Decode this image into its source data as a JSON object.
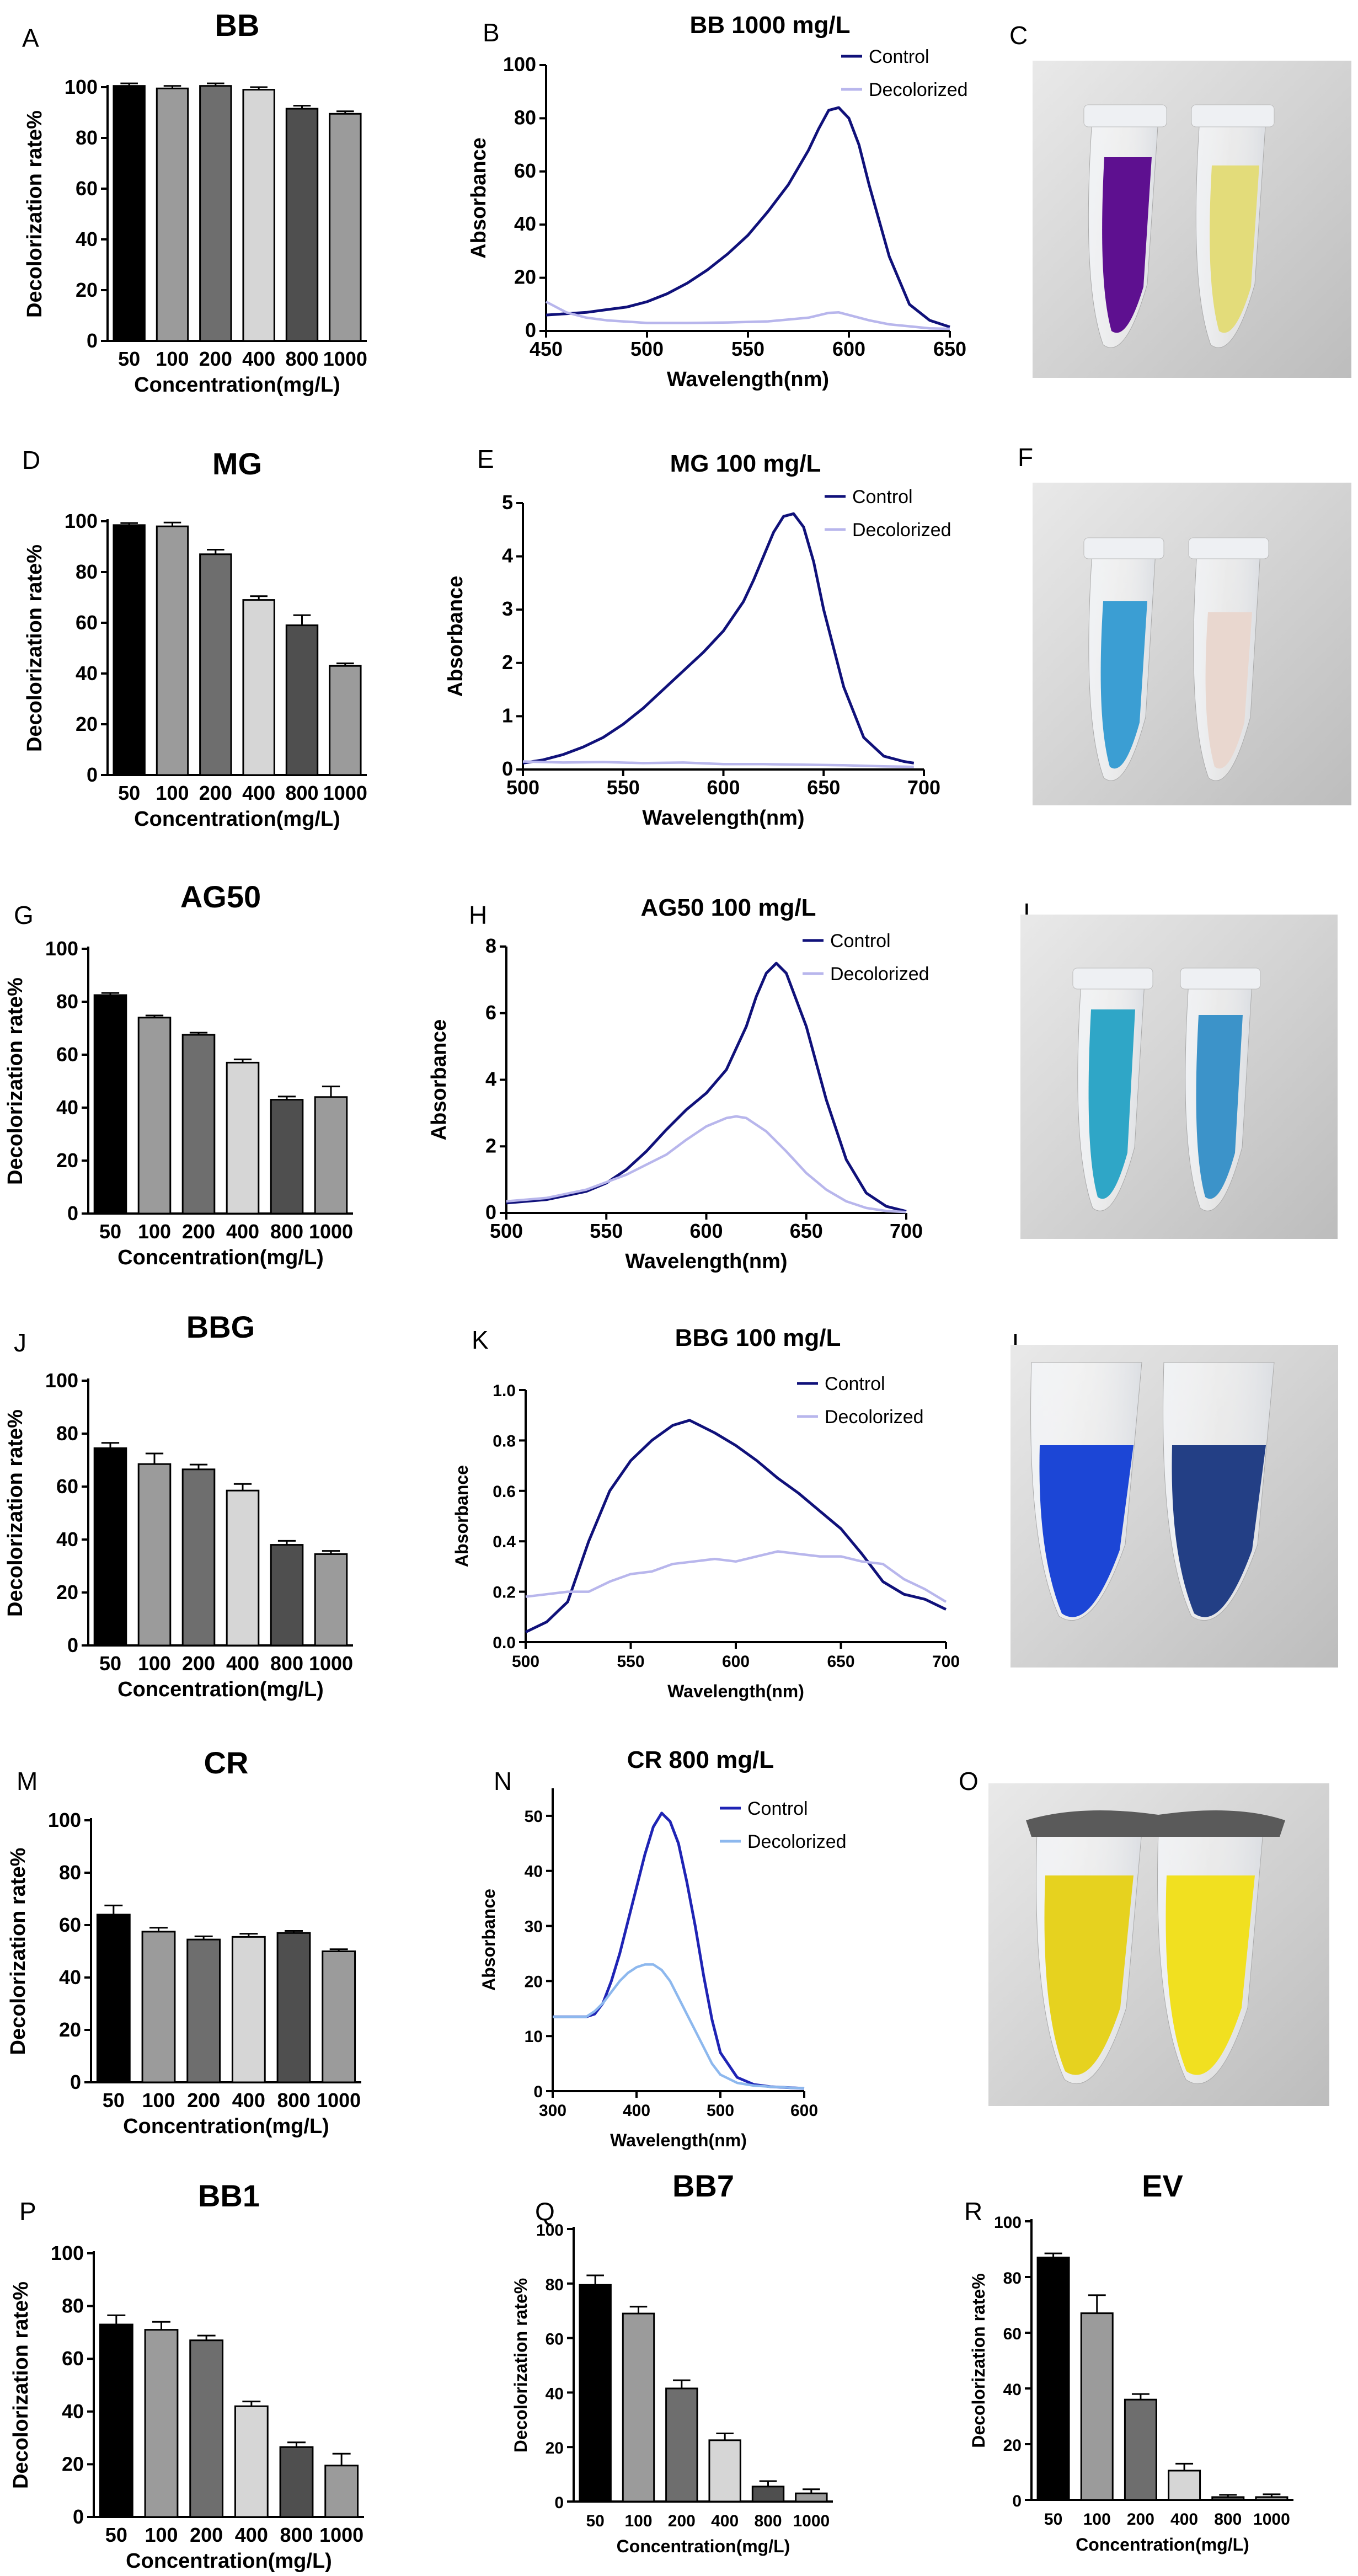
{
  "panel_letters": [
    "A",
    "B",
    "C",
    "D",
    "E",
    "F",
    "G",
    "H",
    "I",
    "J",
    "K",
    "L",
    "M",
    "N",
    "O",
    "P",
    "Q",
    "R"
  ],
  "photo_descriptions": [],
  "colors": {
    "bar_fills": [
      "#000000",
      "#9b9b9b",
      "#6e6e6e",
      "#d6d6d6",
      "#4f4f4f",
      "#9b9b9b"
    ],
    "control_line": "#10117a",
    "decolorized_line": "#b8b6ec",
    "control_line_N": "#1f24b5",
    "decolorized_line_N": "#8db8ee"
  },
  "chart_data": [
    {
      "id": "A",
      "type": "bar",
      "title": "BB",
      "categories": [
        "50",
        "100",
        "200",
        "400",
        "800",
        "1000"
      ],
      "values": [
        100.5,
        99.5,
        100.5,
        99,
        91.5,
        89.5
      ],
      "errors": [
        1,
        1,
        1,
        1,
        1.2,
        1
      ],
      "ylabel": "Decolorization rate%",
      "xlabel": "Concentration(mg/L)",
      "ylim": [
        0,
        100
      ],
      "yticks": [
        "0",
        "20",
        "40",
        "60",
        "80",
        "100"
      ]
    },
    {
      "id": "B",
      "type": "line",
      "title": "BB 1000 mg/L",
      "xlabel": "Wavelength(nm)",
      "ylabel": "Absorbance",
      "xlim": [
        450,
        650
      ],
      "ylim": [
        0,
        100
      ],
      "xticks": [
        "450",
        "500",
        "550",
        "600",
        "650"
      ],
      "yticks": [
        "0",
        "20",
        "40",
        "60",
        "80",
        "100"
      ],
      "legend": [
        "Control",
        "Decolorized"
      ],
      "series": [
        {
          "name": "Control",
          "x": [
            450,
            460,
            470,
            480,
            490,
            500,
            510,
            520,
            530,
            540,
            550,
            560,
            570,
            580,
            585,
            590,
            595,
            600,
            605,
            610,
            620,
            630,
            640,
            650
          ],
          "y": [
            6,
            6.5,
            7,
            8,
            9,
            11,
            14,
            18,
            23,
            29,
            36,
            45,
            55,
            68,
            76,
            83,
            84,
            80,
            70,
            55,
            28,
            10,
            4,
            1.5
          ]
        },
        {
          "name": "Decolorized",
          "x": [
            450,
            460,
            470,
            480,
            500,
            520,
            540,
            560,
            580,
            590,
            595,
            600,
            610,
            620,
            640,
            650
          ],
          "y": [
            11,
            7,
            5,
            4,
            3,
            3,
            3.2,
            3.6,
            5,
            6.8,
            7,
            6,
            4,
            2.5,
            1,
            0.8
          ]
        }
      ]
    },
    {
      "id": "D",
      "type": "bar",
      "title": "MG",
      "categories": [
        "50",
        "100",
        "200",
        "400",
        "800",
        "1000"
      ],
      "values": [
        98.5,
        98,
        87,
        69,
        59,
        43
      ],
      "errors": [
        0.8,
        1.5,
        1.8,
        1.5,
        4,
        1
      ],
      "ylabel": "Decolorization rate%",
      "xlabel": "Concentration(mg/L)",
      "ylim": [
        0,
        100
      ],
      "yticks": [
        "0",
        "20",
        "40",
        "60",
        "80",
        "100"
      ]
    },
    {
      "id": "E",
      "type": "line",
      "title": "MG 100 mg/L",
      "xlabel": "Wavelength(nm)",
      "ylabel": "Absorbance",
      "xlim": [
        500,
        700
      ],
      "ylim": [
        0,
        5
      ],
      "xticks": [
        "500",
        "550",
        "600",
        "650",
        "700"
      ],
      "yticks": [
        "0",
        "1",
        "2",
        "3",
        "4",
        "5"
      ],
      "legend": [
        "Control",
        "Decolorized"
      ],
      "series": [
        {
          "name": "Control",
          "x": [
            500,
            510,
            520,
            530,
            540,
            550,
            560,
            570,
            580,
            590,
            600,
            610,
            615,
            620,
            625,
            630,
            635,
            640,
            645,
            650,
            660,
            670,
            680,
            690,
            695
          ],
          "y": [
            0.12,
            0.18,
            0.28,
            0.42,
            0.6,
            0.85,
            1.15,
            1.5,
            1.85,
            2.2,
            2.6,
            3.15,
            3.55,
            4.0,
            4.45,
            4.75,
            4.8,
            4.55,
            3.9,
            3.0,
            1.55,
            0.6,
            0.25,
            0.15,
            0.12
          ]
        },
        {
          "name": "Decolorized",
          "x": [
            500,
            520,
            540,
            560,
            580,
            600,
            620,
            640,
            660,
            680,
            695
          ],
          "y": [
            0.15,
            0.13,
            0.14,
            0.12,
            0.13,
            0.1,
            0.1,
            0.09,
            0.08,
            0.06,
            0.05
          ]
        }
      ]
    },
    {
      "id": "G",
      "type": "bar",
      "title": "AG50",
      "categories": [
        "50",
        "100",
        "200",
        "400",
        "800",
        "1000"
      ],
      "values": [
        82.5,
        74,
        67.5,
        57,
        43,
        44
      ],
      "errors": [
        0.8,
        0.8,
        0.8,
        1.2,
        1.2,
        4
      ],
      "ylabel": "Decolorization rate%",
      "xlabel": "Concentration(mg/L)",
      "ylim": [
        0,
        100
      ],
      "yticks": [
        "0",
        "20",
        "40",
        "60",
        "80",
        "100"
      ]
    },
    {
      "id": "H",
      "type": "line",
      "title": "AG50 100 mg/L",
      "xlabel": "Wavelength(nm)",
      "ylabel": "Absorbance",
      "xlim": [
        500,
        700
      ],
      "ylim": [
        0,
        8
      ],
      "xticks": [
        "500",
        "550",
        "600",
        "650",
        "700"
      ],
      "yticks": [
        "0",
        "2",
        "4",
        "6",
        "8"
      ],
      "legend": [
        "Control",
        "Decolorized"
      ],
      "series": [
        {
          "name": "Control",
          "x": [
            500,
            520,
            540,
            550,
            560,
            570,
            580,
            590,
            600,
            610,
            620,
            625,
            630,
            635,
            640,
            650,
            660,
            670,
            680,
            690,
            700
          ],
          "y": [
            0.3,
            0.4,
            0.65,
            0.9,
            1.3,
            1.85,
            2.5,
            3.1,
            3.6,
            4.3,
            5.6,
            6.5,
            7.2,
            7.5,
            7.2,
            5.6,
            3.4,
            1.6,
            0.6,
            0.2,
            0.05
          ]
        },
        {
          "name": "Decolorized",
          "x": [
            500,
            520,
            540,
            560,
            580,
            590,
            600,
            610,
            615,
            620,
            630,
            640,
            650,
            660,
            670,
            680,
            690,
            700
          ],
          "y": [
            0.35,
            0.45,
            0.7,
            1.15,
            1.75,
            2.2,
            2.6,
            2.85,
            2.9,
            2.85,
            2.45,
            1.85,
            1.2,
            0.7,
            0.35,
            0.15,
            0.06,
            0.03
          ]
        }
      ]
    },
    {
      "id": "J",
      "type": "bar",
      "title": "BBG",
      "categories": [
        "50",
        "100",
        "200",
        "400",
        "800",
        "1000"
      ],
      "values": [
        74.5,
        68.5,
        66.5,
        58.5,
        38,
        34.5
      ],
      "errors": [
        2,
        4,
        1.8,
        2.5,
        1.5,
        1.2
      ],
      "ylabel": "Decolorization rate%",
      "xlabel": "Concentration(mg/L)",
      "ylim": [
        0,
        100
      ],
      "yticks": [
        "0",
        "20",
        "40",
        "60",
        "80",
        "100"
      ]
    },
    {
      "id": "K",
      "type": "line",
      "title": "BBG 100 mg/L",
      "xlabel": "Wavelength(nm)",
      "ylabel": "Absorbance",
      "xlim": [
        500,
        700
      ],
      "ylim": [
        0,
        1.0
      ],
      "xticks": [
        "500",
        "550",
        "600",
        "650",
        "700"
      ],
      "yticks": [
        "0.0",
        "0.2",
        "0.4",
        "0.6",
        "0.8",
        "1.0"
      ],
      "legend": [
        "Control",
        "Decolorized"
      ],
      "series": [
        {
          "name": "Control",
          "x": [
            500,
            510,
            520,
            530,
            540,
            550,
            560,
            570,
            578,
            590,
            600,
            610,
            620,
            630,
            640,
            650,
            660,
            670,
            680,
            690,
            700
          ],
          "y": [
            0.04,
            0.08,
            0.16,
            0.4,
            0.6,
            0.72,
            0.8,
            0.86,
            0.88,
            0.83,
            0.78,
            0.72,
            0.65,
            0.59,
            0.52,
            0.45,
            0.35,
            0.24,
            0.19,
            0.17,
            0.13
          ]
        },
        {
          "name": "Decolorized",
          "x": [
            500,
            510,
            520,
            530,
            540,
            550,
            560,
            570,
            580,
            590,
            600,
            610,
            620,
            630,
            640,
            650,
            660,
            670,
            680,
            690,
            700
          ],
          "y": [
            0.18,
            0.19,
            0.2,
            0.2,
            0.24,
            0.27,
            0.28,
            0.31,
            0.32,
            0.33,
            0.32,
            0.34,
            0.36,
            0.35,
            0.34,
            0.34,
            0.32,
            0.31,
            0.25,
            0.21,
            0.16
          ]
        }
      ]
    },
    {
      "id": "M",
      "type": "bar",
      "title": "CR",
      "categories": [
        "50",
        "100",
        "200",
        "400",
        "800",
        "1000"
      ],
      "values": [
        64,
        57.5,
        54.5,
        55.5,
        57,
        50
      ],
      "errors": [
        3.5,
        1.5,
        1.2,
        1.2,
        0.8,
        0.8
      ],
      "ylabel": "Decolorization rate%",
      "xlabel": "Concentration(mg/L)",
      "ylim": [
        0,
        100
      ],
      "yticks": [
        "0",
        "20",
        "40",
        "60",
        "80",
        "100"
      ]
    },
    {
      "id": "N",
      "type": "line",
      "title": "CR 800 mg/L",
      "xlabel": "Wavelength(nm)",
      "ylabel": "Absorbance",
      "xlim": [
        300,
        600
      ],
      "ylim": [
        0,
        55
      ],
      "xticks": [
        "300",
        "400",
        "500",
        "600"
      ],
      "yticks": [
        "0",
        "10",
        "20",
        "30",
        "40",
        "50"
      ],
      "legend": [
        "Control",
        "Decolorized"
      ],
      "series": [
        {
          "name": "Control",
          "x": [
            300,
            320,
            340,
            350,
            360,
            370,
            380,
            390,
            400,
            410,
            420,
            430,
            440,
            450,
            460,
            470,
            480,
            490,
            500,
            520,
            540,
            560,
            600
          ],
          "y": [
            13.5,
            13.5,
            13.5,
            14,
            16,
            20,
            25,
            31,
            37,
            43,
            48,
            50.5,
            49,
            45,
            38,
            30,
            21,
            13,
            7,
            2.5,
            1.2,
            0.8,
            0.5
          ]
        },
        {
          "name": "Decolorized",
          "x": [
            300,
            320,
            340,
            350,
            360,
            370,
            380,
            390,
            400,
            410,
            420,
            430,
            440,
            450,
            460,
            470,
            480,
            490,
            500,
            520,
            540,
            560,
            600
          ],
          "y": [
            13.5,
            13.5,
            13.5,
            14.5,
            16,
            18,
            20,
            21.5,
            22.5,
            23,
            23,
            22,
            20,
            17,
            14,
            11,
            8,
            5,
            3,
            1.5,
            1,
            0.8,
            0.5
          ]
        }
      ]
    },
    {
      "id": "P",
      "type": "bar",
      "title": "BB1",
      "categories": [
        "50",
        "100",
        "200",
        "400",
        "800",
        "1000"
      ],
      "values": [
        73,
        71,
        67,
        42,
        26.5,
        19.5
      ],
      "errors": [
        3.5,
        3,
        1.8,
        1.8,
        1.8,
        4.5
      ],
      "ylabel": "Decolorization rate%",
      "xlabel": "Concentration(mg/L)",
      "ylim": [
        0,
        100
      ],
      "yticks": [
        "0",
        "20",
        "40",
        "60",
        "80",
        "100"
      ]
    },
    {
      "id": "Q",
      "type": "bar",
      "title": "BB7",
      "categories": [
        "50",
        "100",
        "200",
        "400",
        "800",
        "1000"
      ],
      "values": [
        79.5,
        69,
        41.5,
        22.5,
        5.5,
        3
      ],
      "errors": [
        3.5,
        2.5,
        3,
        2.5,
        2,
        1.5
      ],
      "ylabel": "Decolorization rate%",
      "xlabel": "Concentration(mg/L)",
      "ylim": [
        0,
        100
      ],
      "yticks": [
        "0",
        "20",
        "40",
        "60",
        "80",
        "100"
      ]
    },
    {
      "id": "R",
      "type": "bar",
      "title": "EV",
      "categories": [
        "50",
        "100",
        "200",
        "400",
        "800",
        "1000"
      ],
      "values": [
        87,
        67,
        36,
        10.5,
        1,
        1
      ],
      "errors": [
        1.5,
        6.5,
        2,
        2.5,
        0.8,
        1
      ],
      "ylabel": "Decolorization rate%",
      "xlabel": "Concentration(mg/L)",
      "ylim": [
        0,
        100
      ],
      "yticks": [
        "0",
        "20",
        "40",
        "60",
        "80",
        "100"
      ]
    }
  ]
}
